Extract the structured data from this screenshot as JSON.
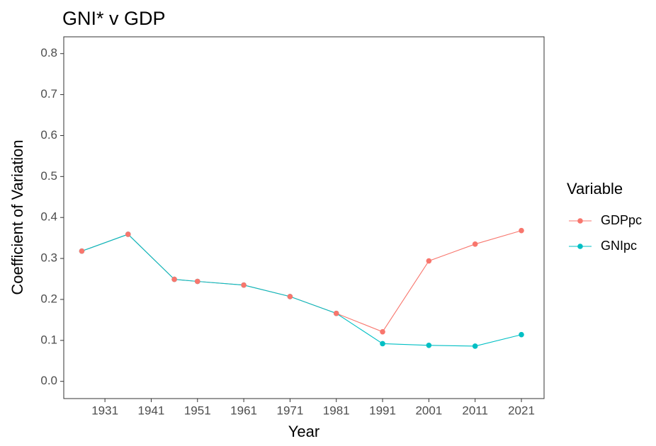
{
  "chart_data": {
    "type": "line",
    "title": "GNI* v GDP",
    "x_label": "Year",
    "y_label": "Coefficient of Variation",
    "x": [
      1926,
      1936,
      1946,
      1951,
      1961,
      1971,
      1981,
      1991,
      2001,
      2011,
      2021
    ],
    "series": [
      {
        "name": "GDPpc",
        "color": "#f8766d",
        "values": [
          0.318,
          0.359,
          0.249,
          0.244,
          0.235,
          0.207,
          0.166,
          0.121,
          0.294,
          0.335,
          0.368
        ]
      },
      {
        "name": "GNIpc",
        "color": "#00bfc4",
        "values": [
          0.318,
          0.359,
          0.249,
          0.244,
          0.235,
          0.207,
          0.166,
          0.092,
          0.088,
          0.086,
          0.114
        ]
      }
    ],
    "legend_title": "Variable",
    "legend": "right",
    "grid": false,
    "xlim": [
      1922.1,
      2025.9
    ],
    "xticks": [
      1931,
      1941,
      1951,
      1961,
      1971,
      1981,
      1991,
      2001,
      2011,
      2021
    ],
    "ylim": [
      -0.042,
      0.841
    ],
    "yticks": [
      {
        "value": 0,
        "label": "0.0"
      },
      0.1,
      0.2,
      0.3,
      0.4,
      0.5,
      0.6,
      0.7,
      0.8
    ]
  }
}
